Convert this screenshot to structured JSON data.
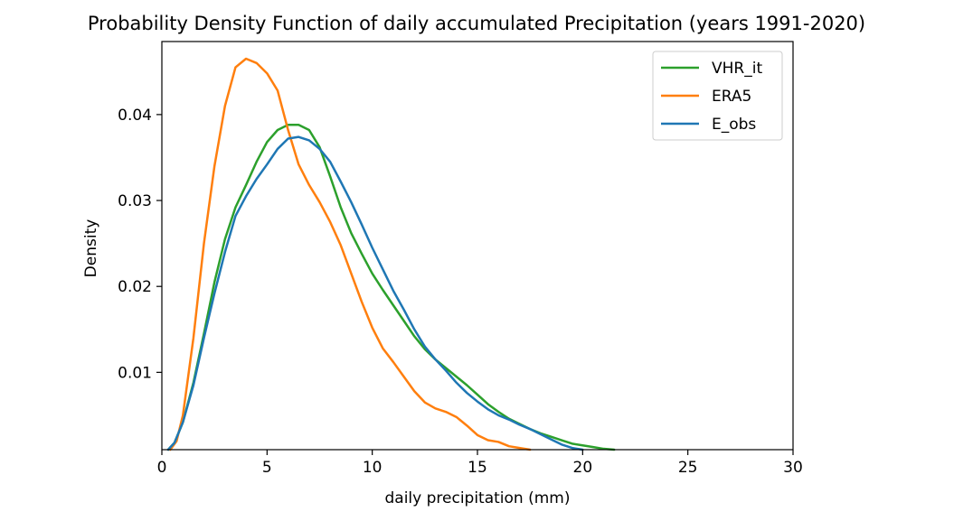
{
  "chart_data": {
    "type": "line",
    "title": "Probability Density Function of daily accumulated Precipitation (years 1991-2020)",
    "xlabel": "daily precipitation (mm)",
    "ylabel": "Density",
    "xlim": [
      0,
      30
    ],
    "ylim": [
      0.001,
      0.0485
    ],
    "xticks": [
      0,
      5,
      10,
      15,
      20,
      25,
      30
    ],
    "yticks": [
      0.01,
      0.02,
      0.03,
      0.04
    ],
    "yticklabels": [
      "0.01",
      "0.02",
      "0.03",
      "0.04"
    ],
    "grid": false,
    "legend_position": "top-right",
    "series": [
      {
        "name": "VHR_it",
        "color": "#2ca02c",
        "points": [
          [
            0.3,
            0.001
          ],
          [
            0.6,
            0.0018
          ],
          [
            1.0,
            0.0042
          ],
          [
            1.5,
            0.0088
          ],
          [
            2.0,
            0.0145
          ],
          [
            2.5,
            0.0205
          ],
          [
            3.0,
            0.0255
          ],
          [
            3.5,
            0.0292
          ],
          [
            4.0,
            0.0318
          ],
          [
            4.5,
            0.0345
          ],
          [
            5.0,
            0.0368
          ],
          [
            5.5,
            0.0382
          ],
          [
            6.0,
            0.0388
          ],
          [
            6.5,
            0.0388
          ],
          [
            7.0,
            0.0382
          ],
          [
            7.5,
            0.0362
          ],
          [
            8.0,
            0.0328
          ],
          [
            8.5,
            0.0292
          ],
          [
            9.0,
            0.0262
          ],
          [
            9.5,
            0.0238
          ],
          [
            10.0,
            0.0215
          ],
          [
            10.5,
            0.0196
          ],
          [
            11.0,
            0.0178
          ],
          [
            11.5,
            0.016
          ],
          [
            12.0,
            0.0142
          ],
          [
            12.5,
            0.0127
          ],
          [
            13.0,
            0.0115
          ],
          [
            13.5,
            0.0105
          ],
          [
            14.0,
            0.0095
          ],
          [
            14.5,
            0.0085
          ],
          [
            15.0,
            0.0074
          ],
          [
            15.5,
            0.0063
          ],
          [
            16.0,
            0.0054
          ],
          [
            16.5,
            0.0046
          ],
          [
            17.0,
            0.004
          ],
          [
            17.5,
            0.0034
          ],
          [
            18.0,
            0.0029
          ],
          [
            18.5,
            0.0025
          ],
          [
            19.0,
            0.0021
          ],
          [
            19.5,
            0.0017
          ],
          [
            20.0,
            0.0015
          ],
          [
            20.5,
            0.0013
          ],
          [
            21.0,
            0.0011
          ],
          [
            21.5,
            0.001
          ]
        ]
      },
      {
        "name": "ERA5",
        "color": "#ff7f0e",
        "points": [
          [
            0.4,
            0.001
          ],
          [
            0.7,
            0.002
          ],
          [
            1.0,
            0.005
          ],
          [
            1.5,
            0.014
          ],
          [
            2.0,
            0.025
          ],
          [
            2.5,
            0.034
          ],
          [
            3.0,
            0.041
          ],
          [
            3.5,
            0.0455
          ],
          [
            4.0,
            0.0465
          ],
          [
            4.5,
            0.046
          ],
          [
            5.0,
            0.0448
          ],
          [
            5.5,
            0.0428
          ],
          [
            6.0,
            0.0382
          ],
          [
            6.5,
            0.0342
          ],
          [
            7.0,
            0.0318
          ],
          [
            7.5,
            0.0298
          ],
          [
            8.0,
            0.0275
          ],
          [
            8.5,
            0.0248
          ],
          [
            9.0,
            0.0215
          ],
          [
            9.5,
            0.0182
          ],
          [
            10.0,
            0.0152
          ],
          [
            10.5,
            0.0128
          ],
          [
            11.0,
            0.0112
          ],
          [
            11.5,
            0.0095
          ],
          [
            12.0,
            0.0078
          ],
          [
            12.5,
            0.0065
          ],
          [
            13.0,
            0.0058
          ],
          [
            13.5,
            0.0054
          ],
          [
            14.0,
            0.0048
          ],
          [
            14.5,
            0.0038
          ],
          [
            15.0,
            0.0027
          ],
          [
            15.5,
            0.0021
          ],
          [
            16.0,
            0.0019
          ],
          [
            16.5,
            0.0014
          ],
          [
            17.0,
            0.0012
          ],
          [
            17.5,
            0.001
          ]
        ]
      },
      {
        "name": "E_obs",
        "color": "#1f77b4",
        "points": [
          [
            0.3,
            0.001
          ],
          [
            0.6,
            0.0018
          ],
          [
            1.0,
            0.0042
          ],
          [
            1.5,
            0.0085
          ],
          [
            2.0,
            0.014
          ],
          [
            2.5,
            0.0192
          ],
          [
            3.0,
            0.024
          ],
          [
            3.5,
            0.0282
          ],
          [
            4.0,
            0.0305
          ],
          [
            4.5,
            0.0325
          ],
          [
            5.0,
            0.0342
          ],
          [
            5.5,
            0.036
          ],
          [
            6.0,
            0.0372
          ],
          [
            6.5,
            0.0374
          ],
          [
            7.0,
            0.037
          ],
          [
            7.5,
            0.036
          ],
          [
            8.0,
            0.0345
          ],
          [
            8.5,
            0.0322
          ],
          [
            9.0,
            0.0298
          ],
          [
            9.5,
            0.0272
          ],
          [
            10.0,
            0.0245
          ],
          [
            10.5,
            0.022
          ],
          [
            11.0,
            0.0195
          ],
          [
            11.5,
            0.0173
          ],
          [
            12.0,
            0.015
          ],
          [
            12.5,
            0.013
          ],
          [
            13.0,
            0.0115
          ],
          [
            13.5,
            0.0102
          ],
          [
            14.0,
            0.0088
          ],
          [
            14.5,
            0.0076
          ],
          [
            15.0,
            0.0066
          ],
          [
            15.5,
            0.0057
          ],
          [
            16.0,
            0.005
          ],
          [
            16.5,
            0.0045
          ],
          [
            17.0,
            0.0039
          ],
          [
            17.5,
            0.0034
          ],
          [
            18.0,
            0.0028
          ],
          [
            18.5,
            0.0022
          ],
          [
            19.0,
            0.0016
          ],
          [
            19.5,
            0.0012
          ],
          [
            20.0,
            0.001
          ]
        ]
      }
    ]
  }
}
